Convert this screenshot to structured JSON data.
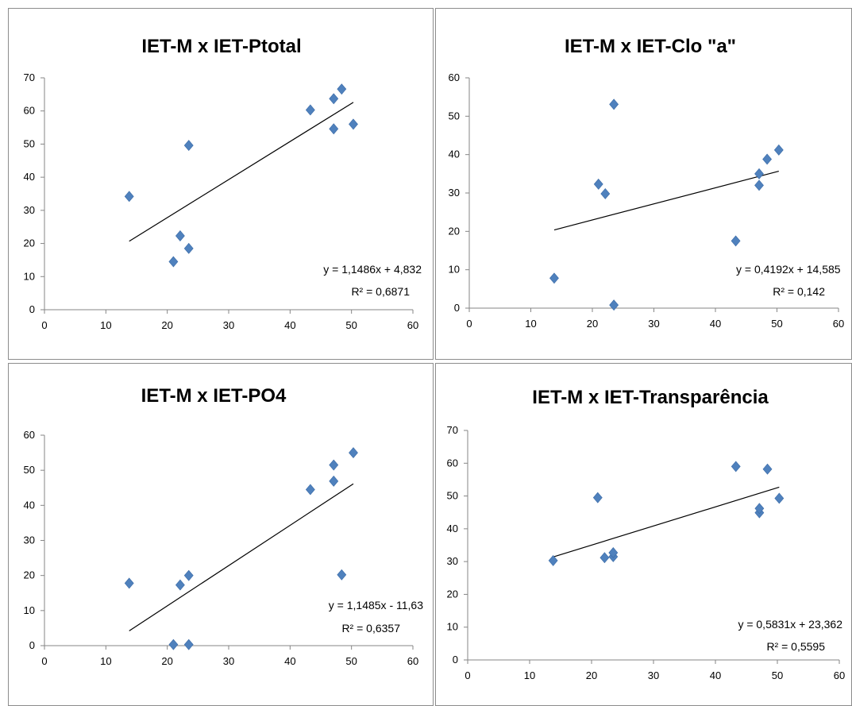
{
  "charts": [
    {
      "title": "IET-M x IET-Ptotal",
      "equation": "y = 1,1486x + 4,832",
      "r2_label": "R² = 0,6871"
    },
    {
      "title": "IET-M x IET-Clo \"a\"",
      "equation": "y = 0,4192x + 14,585",
      "r2_label": "R² = 0,142"
    },
    {
      "title": "IET-M x  IET-PO4",
      "equation": "y = 1,1485x - 11,63",
      "r2_label": "R² = 0,6357"
    },
    {
      "title": "IET-M x IET-Transparência",
      "equation": "y = 0,5831x + 23,362",
      "r2_label": "R² = 0,5595"
    }
  ],
  "chart_data": [
    {
      "type": "scatter",
      "title": "IET-M x IET-Ptotal",
      "xlabel": "",
      "ylabel": "",
      "xlim": [
        0,
        60
      ],
      "ylim": [
        0,
        70
      ],
      "xticks": [
        0,
        10,
        20,
        30,
        40,
        50,
        60
      ],
      "yticks": [
        0,
        10,
        20,
        30,
        40,
        50,
        60,
        70
      ],
      "points": [
        [
          13.8,
          34.2
        ],
        [
          21.0,
          14.5
        ],
        [
          22.1,
          22.3
        ],
        [
          23.5,
          18.5
        ],
        [
          23.5,
          49.6
        ],
        [
          43.3,
          60.3
        ],
        [
          47.1,
          54.6
        ],
        [
          47.1,
          63.7
        ],
        [
          48.4,
          66.6
        ],
        [
          50.3,
          56.0
        ]
      ],
      "trendline": {
        "slope": 1.1486,
        "intercept": 4.832,
        "x_range": [
          13.8,
          50.3
        ]
      },
      "grid": false,
      "marker_color": "#4f81bd"
    },
    {
      "type": "scatter",
      "title": "IET-M x IET-Clo \"a\"",
      "xlabel": "",
      "ylabel": "",
      "xlim": [
        0,
        60
      ],
      "ylim": [
        0,
        60
      ],
      "xticks": [
        0,
        10,
        20,
        30,
        40,
        50,
        60
      ],
      "yticks": [
        0,
        10,
        20,
        30,
        40,
        50,
        60
      ],
      "points": [
        [
          13.8,
          7.8
        ],
        [
          21.0,
          32.3
        ],
        [
          22.1,
          29.8
        ],
        [
          23.5,
          0.8
        ],
        [
          23.5,
          53.1
        ],
        [
          43.3,
          17.5
        ],
        [
          47.1,
          32.0
        ],
        [
          47.1,
          35.0
        ],
        [
          48.4,
          38.8
        ],
        [
          50.3,
          41.2
        ]
      ],
      "trendline": {
        "slope": 0.4192,
        "intercept": 14.585,
        "x_range": [
          13.8,
          50.3
        ]
      },
      "grid": false,
      "marker_color": "#4f81bd"
    },
    {
      "type": "scatter",
      "title": "IET-M x  IET-PO4",
      "xlabel": "",
      "ylabel": "",
      "xlim": [
        0,
        60
      ],
      "ylim": [
        0,
        60
      ],
      "xticks": [
        0,
        10,
        20,
        30,
        40,
        50,
        60
      ],
      "yticks": [
        0,
        10,
        20,
        30,
        40,
        50,
        60
      ],
      "points": [
        [
          13.8,
          17.8
        ],
        [
          21.0,
          0.3
        ],
        [
          22.1,
          17.3
        ],
        [
          23.5,
          0.3
        ],
        [
          23.5,
          20.0
        ],
        [
          43.3,
          44.5
        ],
        [
          47.1,
          46.9
        ],
        [
          47.1,
          51.5
        ],
        [
          48.4,
          20.2
        ],
        [
          50.3,
          55.0
        ]
      ],
      "trendline": {
        "slope": 1.1485,
        "intercept": -11.63,
        "x_range": [
          13.8,
          50.3
        ]
      },
      "grid": false,
      "marker_color": "#4f81bd"
    },
    {
      "type": "scatter",
      "title": "IET-M x IET-Transparência",
      "xlabel": "",
      "ylabel": "",
      "xlim": [
        0,
        60
      ],
      "ylim": [
        0,
        70
      ],
      "xticks": [
        0,
        10,
        20,
        30,
        40,
        50,
        60
      ],
      "yticks": [
        0,
        10,
        20,
        30,
        40,
        50,
        60,
        70
      ],
      "points": [
        [
          13.8,
          30.3
        ],
        [
          21.0,
          49.5
        ],
        [
          22.1,
          31.2
        ],
        [
          23.5,
          31.5
        ],
        [
          23.5,
          32.7
        ],
        [
          43.3,
          59.0
        ],
        [
          47.1,
          44.9
        ],
        [
          47.1,
          46.2
        ],
        [
          48.4,
          58.2
        ],
        [
          50.3,
          49.3
        ]
      ],
      "trendline": {
        "slope": 0.5831,
        "intercept": 23.362,
        "x_range": [
          13.8,
          50.3
        ]
      },
      "grid": false,
      "marker_color": "#4f81bd"
    }
  ]
}
